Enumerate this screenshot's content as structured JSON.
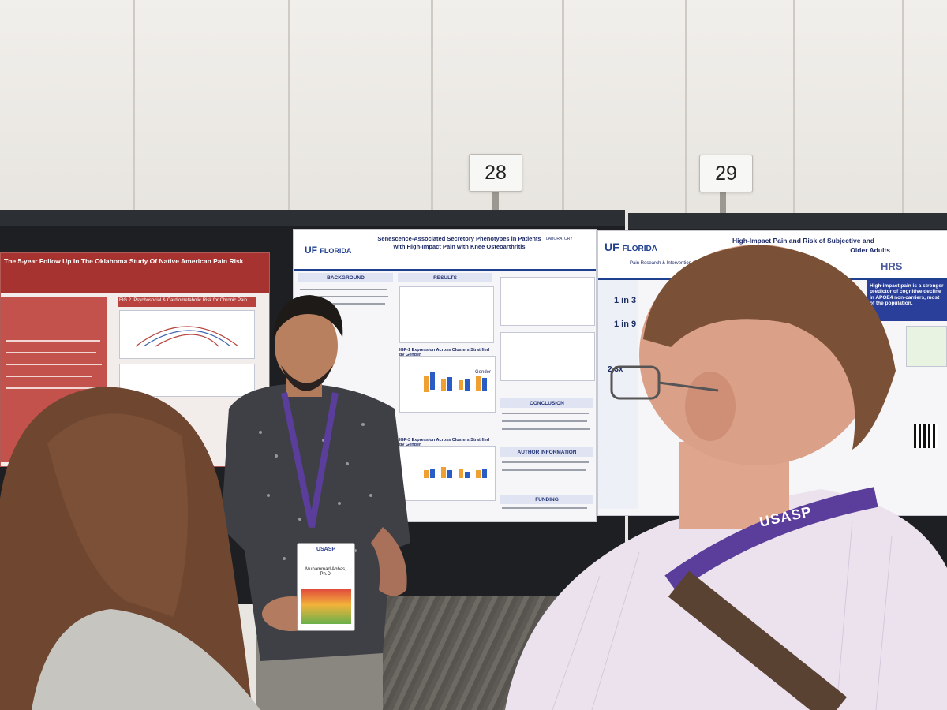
{
  "scene": {
    "description_labels": {
      "poster_number_left": "28",
      "poster_number_right": "29"
    }
  },
  "poster_left": {
    "title_line1": "Senescence-Associated Secretory Phenotypes in Patients",
    "title_line2": "with High-Impact Pain with Knee Osteoarthritis",
    "logo_uf": "UF",
    "logo_florida": "FLORIDA",
    "logo_lab": "LABORATORY",
    "sections": [
      "BACKGROUND",
      "RESULTS",
      "CONCLUSION",
      "AUTHOR INFORMATION",
      "FUNDING"
    ],
    "chart1_title": "IGF-1 Expression Across Clusters Stratified by Gender",
    "chart2_title": "IGF-3 Expression Across Clusters Stratified by Gender",
    "legend_title": "Gender",
    "legend_items": [
      "Female",
      "Male"
    ],
    "x_ticks": [
      "C1",
      "C2",
      "C3",
      "C4"
    ]
  },
  "poster_right": {
    "title_line1": "High-Impact Pain and Risk of Subjective and",
    "title_line2": "Older Adults",
    "logo_uf": "UF",
    "logo_florida": "FLORIDA",
    "logo_sub": "Pain Research & Intervention Center of Excellence",
    "logo_hrs": "HRS",
    "stat1": "1 in 3",
    "stat2": "1 in 9",
    "stat3": "2.3x",
    "callout_text": "High-impact pain is a stronger predictor of cognitive decline in APOE4 non-carriers, most of the population."
  },
  "poster_far_left": {
    "title": "The 5-year Follow Up In The Oklahoma Study Of Native American Pain Risk",
    "fig_label": "FIG 2. Psychosocial & Cardiometabolic Risk for Chronic Pain"
  },
  "badge": {
    "org": "USASP",
    "name": "Muhammad Abbas, Ph.D."
  },
  "lanyard_right": {
    "text": "USASP"
  }
}
